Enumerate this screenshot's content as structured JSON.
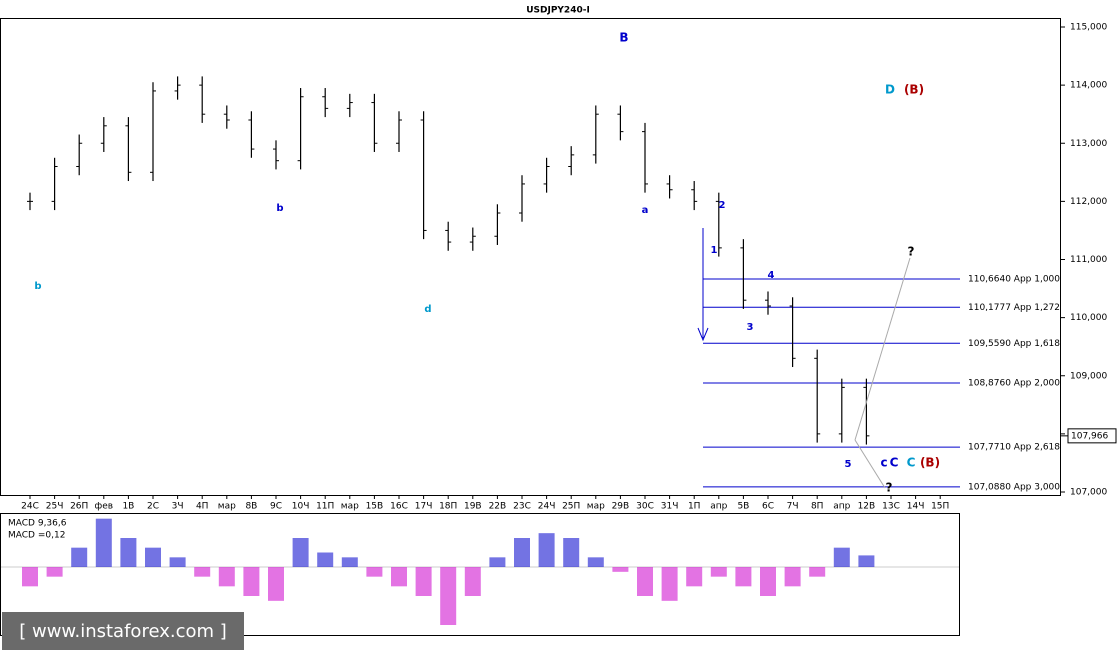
{
  "chart_data": {
    "type": "ohlc",
    "title": "USDJPY240-I",
    "categories": [
      "24С",
      "25Ч",
      "26П",
      "фев",
      "1В",
      "2С",
      "3Ч",
      "4П",
      "мар",
      "8В",
      "9С",
      "10Ч",
      "11П",
      "мар",
      "15В",
      "16С",
      "17Ч",
      "18П",
      "19В",
      "22В",
      "23С",
      "24Ч",
      "25П",
      "мар",
      "29В",
      "30С",
      "31Ч",
      "1П",
      "апр",
      "5В",
      "6С",
      "7Ч",
      "8П",
      "апр",
      "12В",
      "13С",
      "14Ч",
      "15П"
    ],
    "values": [
      112.0,
      112.6,
      113.0,
      113.3,
      112.5,
      113.9,
      114.0,
      113.5,
      113.4,
      112.9,
      112.7,
      113.8,
      113.6,
      113.7,
      113.0,
      113.4,
      111.5,
      111.3,
      111.4,
      111.8,
      112.3,
      112.6,
      112.8,
      113.5,
      113.2,
      112.3,
      112.2,
      112.0,
      111.2,
      110.3,
      110.2,
      109.3,
      108.0,
      108.8,
      107.966,
      null,
      null,
      null
    ],
    "color": "#000000",
    "ylim": [
      107.0,
      115.0
    ],
    "yticks": [
      {
        "value": 115,
        "label": "115,000"
      },
      {
        "value": 114,
        "label": "114,000"
      },
      {
        "value": 113,
        "label": "113,000"
      },
      {
        "value": 112,
        "label": "112,000"
      },
      {
        "value": 111,
        "label": "111,000"
      },
      {
        "value": 110,
        "label": "110,000"
      },
      {
        "value": 109,
        "label": "109,000"
      },
      {
        "value": 108,
        "label": "108,000"
      },
      {
        "value": 107,
        "label": "107,000"
      }
    ],
    "current_price": {
      "value": 107.966,
      "label": "107,966"
    },
    "levels": [
      {
        "value": 110.664,
        "label": "110,6640 App 1,000"
      },
      {
        "value": 110.1777,
        "label": "110,1777 App 1,272"
      },
      {
        "value": 109.559,
        "label": "109,5590 App 1,618"
      },
      {
        "value": 108.876,
        "label": "108,8760 App 2,000"
      },
      {
        "value": 107.771,
        "label": "107,7710 App 2,618"
      },
      {
        "value": 107.088,
        "label": "107,0880 App 3,000"
      }
    ],
    "level_color": "#0000cc",
    "waves": [
      {
        "text": "B",
        "color": "#0000cc"
      },
      {
        "text": "D",
        "color": "#0099cc"
      },
      {
        "text": "(B)",
        "color": "#aa0000"
      },
      {
        "text": "c",
        "color": "#0000cc"
      },
      {
        "text": "C",
        "color": "#0000cc"
      },
      {
        "text": "C",
        "color": "#0099cc"
      },
      {
        "text": "(B)",
        "color": "#aa0000"
      },
      {
        "text": "?",
        "color": "#000000"
      },
      {
        "text": "?",
        "color": "#000000"
      },
      {
        "text": "1",
        "color": "#0000cc"
      },
      {
        "text": "2",
        "color": "#0000cc"
      },
      {
        "text": "3",
        "color": "#0000cc"
      },
      {
        "text": "4",
        "color": "#0000cc"
      },
      {
        "text": "5",
        "color": "#0000cc"
      },
      {
        "text": "a",
        "color": "#0000cc"
      },
      {
        "text": "b",
        "color": "#0000cc"
      },
      {
        "text": "d",
        "color": "#0099cc"
      },
      {
        "text": "b",
        "color": "#0099cc"
      }
    ],
    "macd": {
      "label": "MACD 9,36,6",
      "value_label": "MACD =0,12",
      "values": [
        -0.2,
        -0.1,
        0.2,
        0.5,
        0.3,
        0.2,
        0.1,
        -0.1,
        -0.2,
        -0.3,
        -0.35,
        0.3,
        0.15,
        0.1,
        -0.1,
        -0.2,
        -0.3,
        -0.6,
        -0.3,
        0.1,
        0.3,
        0.35,
        0.3,
        0.1,
        -0.05,
        -0.3,
        -0.35,
        -0.2,
        -0.1,
        -0.2,
        -0.3,
        -0.2,
        -0.1,
        0.2,
        0.12,
        null,
        null,
        null
      ],
      "up_color": "#0000cc",
      "down_color": "#cc00cc"
    },
    "watermark": "[ www.instaforex.com ]"
  }
}
